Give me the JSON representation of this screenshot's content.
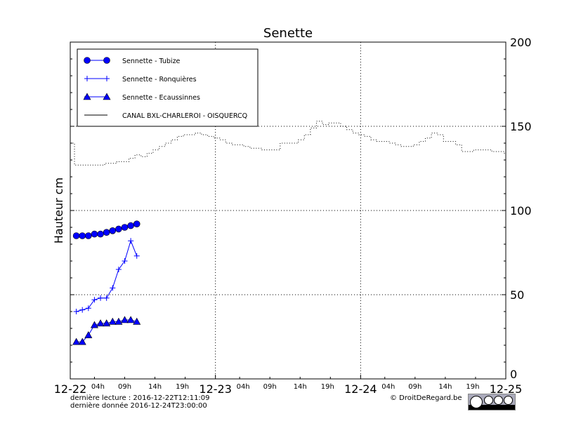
{
  "chart_data": {
    "type": "line",
    "title": "Senette",
    "ylabel": "Hauteur cm",
    "xlabel": "",
    "ylim": [
      0,
      200
    ],
    "yticks": [
      0,
      50,
      100,
      150,
      200
    ],
    "xlim_hours": [
      0,
      72
    ],
    "xticks_major": [
      {
        "h": 0,
        "label": "12-22"
      },
      {
        "h": 24,
        "label": "12-23"
      },
      {
        "h": 48,
        "label": "12-24"
      },
      {
        "h": 72,
        "label": "12-25"
      }
    ],
    "xticks_minor": [
      {
        "h": 4,
        "label": "04h"
      },
      {
        "h": 9,
        "label": "09h"
      },
      {
        "h": 14,
        "label": "14h"
      },
      {
        "h": 19,
        "label": "19h"
      },
      {
        "h": 28,
        "label": "04h"
      },
      {
        "h": 33,
        "label": "09h"
      },
      {
        "h": 38,
        "label": "14h"
      },
      {
        "h": 43,
        "label": "19h"
      },
      {
        "h": 52,
        "label": "04h"
      },
      {
        "h": 57,
        "label": "09h"
      },
      {
        "h": 62,
        "label": "14h"
      },
      {
        "h": 67,
        "label": "19h"
      }
    ],
    "grid": true,
    "legend_position": "top-left",
    "series": [
      {
        "name": "Sennette - Tubize",
        "marker": "circle",
        "color": "#0000ff",
        "x": [
          1,
          2,
          3,
          4,
          5,
          6,
          7,
          8,
          9,
          10,
          11
        ],
        "values": [
          85,
          85,
          85,
          86,
          86,
          87,
          88,
          89,
          90,
          91,
          92
        ]
      },
      {
        "name": "Sennette - Ronquières",
        "marker": "plus",
        "color": "#0000ff",
        "x": [
          1,
          2,
          3,
          4,
          5,
          6,
          7,
          8,
          9,
          10,
          11
        ],
        "values": [
          40,
          41,
          42,
          47,
          48,
          48,
          54,
          65,
          70,
          82,
          73
        ]
      },
      {
        "name": "Sennette - Ecaussinnes",
        "marker": "triangle",
        "color": "#0000ff",
        "x": [
          1,
          2,
          3,
          4,
          5,
          6,
          7,
          8,
          9,
          10,
          11
        ],
        "values": [
          22,
          22,
          26,
          32,
          33,
          33,
          34,
          34,
          35,
          35,
          34
        ]
      },
      {
        "name": "CANAL BXL-CHARLEROI  - OISQUERCQ",
        "marker": "none",
        "color": "#000000",
        "x": [
          0,
          1,
          2,
          3,
          4,
          5,
          6,
          7,
          8,
          9,
          10,
          11,
          12,
          13,
          14,
          15,
          16,
          17,
          18,
          19,
          20,
          21,
          22,
          23,
          24,
          25,
          26,
          27,
          28,
          29,
          30,
          31,
          32,
          33,
          34,
          35,
          36,
          37,
          38,
          39,
          40,
          41,
          42,
          43,
          44,
          45,
          46,
          47,
          48,
          49,
          50,
          51,
          52,
          53,
          54,
          55,
          56,
          57,
          58,
          59,
          60,
          61,
          62,
          63,
          64,
          65,
          66,
          67,
          68,
          69,
          70,
          71,
          72
        ],
        "values": [
          140,
          127,
          127,
          127,
          127,
          127,
          128,
          128,
          129,
          129,
          131,
          133,
          132,
          134,
          136,
          138,
          140,
          142,
          144,
          145,
          145,
          146,
          145,
          144,
          143,
          142,
          140,
          139,
          139,
          138,
          137,
          137,
          136,
          136,
          136,
          140,
          140,
          140,
          142,
          145,
          149,
          153,
          151,
          152,
          152,
          150,
          148,
          146,
          145,
          144,
          142,
          141,
          141,
          140,
          139,
          138,
          138,
          139,
          141,
          143,
          146,
          145,
          141,
          141,
          139,
          135,
          135,
          136,
          136,
          136,
          135,
          135,
          134
        ]
      }
    ]
  },
  "footer": {
    "last_read": "dernière lecture : 2016-12-22T12:11:09",
    "last_data": "dernière donnée  2016-12-24T23:00:00",
    "copyright": "© DroitDeRegard.be",
    "license_badge": "cc BY NC SA"
  }
}
